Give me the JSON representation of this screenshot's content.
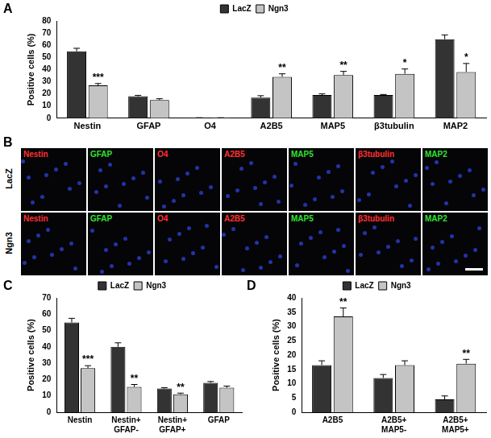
{
  "chart_data": [
    {
      "type": "bar",
      "title": "A",
      "y_label": "Positive cells (%)",
      "categories": [
        "Nestin",
        "GFAP",
        "O4",
        "A2B5",
        "MAP5",
        "β3tubulin",
        "MAP2"
      ],
      "series": [
        {
          "name": "LacZ",
          "color": "#333333",
          "values": [
            55,
            18,
            0.3,
            17,
            19,
            19,
            65
          ],
          "errors": [
            2.5,
            0.8,
            0.1,
            1.5,
            1,
            0.5,
            3.5
          ]
        },
        {
          "name": "Ngn3",
          "color": "#c4c4c4",
          "values": [
            27,
            15,
            0.3,
            34,
            35.5,
            36.5,
            38
          ],
          "errors": [
            1.5,
            1,
            0.1,
            2.5,
            3,
            4,
            7
          ],
          "stars": [
            "***",
            null,
            null,
            "**",
            "**",
            "*",
            "*"
          ]
        }
      ],
      "ylim": [
        0,
        80
      ],
      "yticks": [
        0,
        10,
        20,
        30,
        40,
        50,
        60,
        70,
        80
      ],
      "grid": false,
      "legend": "top"
    },
    {
      "type": "bar",
      "title": "C",
      "y_label": "Positive cells (%)",
      "categories": [
        "Nestin",
        "Nestin+ GFAP-",
        "Nestin+ GFAP+",
        "GFAP"
      ],
      "series": [
        {
          "name": "LacZ",
          "color": "#333333",
          "values": [
            55,
            40,
            14.5,
            18
          ],
          "errors": [
            2.5,
            2.5,
            0.5,
            0.8
          ]
        },
        {
          "name": "Ngn3",
          "color": "#c4c4c4",
          "values": [
            27,
            15.5,
            11,
            15
          ],
          "errors": [
            1.5,
            1.5,
            0.7,
            1
          ],
          "stars": [
            "***",
            "**",
            "**",
            null
          ]
        }
      ],
      "ylim": [
        0,
        70
      ],
      "yticks": [
        0,
        10,
        20,
        30,
        40,
        50,
        60,
        70
      ],
      "grid": false,
      "legend": "top"
    },
    {
      "type": "bar",
      "title": "D",
      "y_label": "Positive cells (%)",
      "categories": [
        "A2B5",
        "A2B5+ MAP5-",
        "A2B5+ MAP5+"
      ],
      "series": [
        {
          "name": "LacZ",
          "color": "#333333",
          "values": [
            16.5,
            12,
            4.5
          ],
          "errors": [
            1.5,
            1.2,
            1.2
          ]
        },
        {
          "name": "Ngn3",
          "color": "#c4c4c4",
          "values": [
            33.5,
            16.5,
            17
          ],
          "errors": [
            3,
            1.5,
            1.5
          ],
          "stars": [
            "**",
            null,
            "**"
          ]
        }
      ],
      "ylim": [
        0,
        40
      ],
      "yticks": [
        0,
        5,
        10,
        15,
        20,
        25,
        30,
        35,
        40
      ],
      "grid": false,
      "legend": "top"
    }
  ],
  "image_panels": {
    "title": "B",
    "rows": [
      "LacZ",
      "Ngn3"
    ],
    "stains": [
      {
        "label": "Nestin",
        "color": "#ff3030"
      },
      {
        "label": "GFAP",
        "color": "#30e030"
      },
      {
        "label": "O4",
        "color": "#ff3030"
      },
      {
        "label": "A2B5",
        "color": "#ff3030"
      },
      {
        "label": "MAP5",
        "color": "#30e030"
      },
      {
        "label": "β3tubulin",
        "color": "#ff3030"
      },
      {
        "label": "MAP2",
        "color": "#30e030"
      }
    ]
  }
}
